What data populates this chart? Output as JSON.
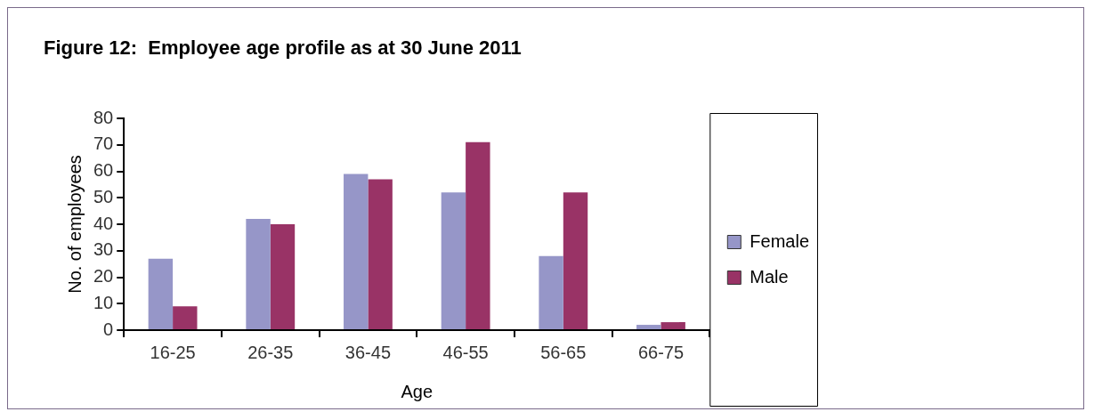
{
  "chart_data": {
    "type": "bar",
    "title": "Figure 12:  Employee age profile as at 30 June 2011",
    "xlabel": "Age",
    "ylabel": "No. of employees",
    "categories": [
      "16-25",
      "26-35",
      "36-45",
      "46-55",
      "56-65",
      "66-75"
    ],
    "series": [
      {
        "name": "Female",
        "color": "#9696c8",
        "values": [
          27,
          42,
          59,
          52,
          28,
          2
        ]
      },
      {
        "name": "Male",
        "color": "#993366",
        "values": [
          9,
          40,
          57,
          71,
          52,
          3
        ]
      }
    ],
    "ylim": [
      0,
      80
    ],
    "yticks": [
      0,
      10,
      20,
      30,
      40,
      50,
      60,
      70,
      80
    ],
    "grid": false,
    "legend": "right"
  }
}
